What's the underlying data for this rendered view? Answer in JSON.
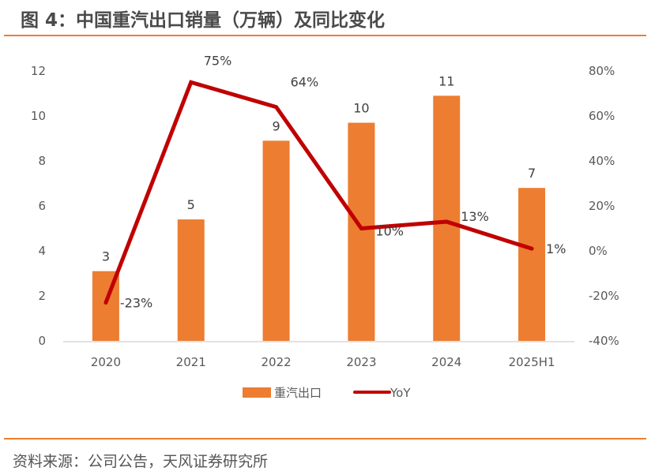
{
  "header": {
    "title": "图 4：中国重汽出口销量（万辆）及同比变化"
  },
  "footer": {
    "source": "资料来源：公司公告，天风证券研究所"
  },
  "colors": {
    "bar": "#ed7d31",
    "line": "#c00000",
    "rule": "#ed7d31",
    "axis": "#d9d9d9"
  },
  "chart_data": {
    "type": "bar+line",
    "title": "中国重汽出口销量（万辆）及同比变化",
    "categories": [
      "2020",
      "2021",
      "2022",
      "2023",
      "2024",
      "2025H1"
    ],
    "series": [
      {
        "name": "重汽出口",
        "type": "bar",
        "axis": "left",
        "values": [
          3.1,
          5.4,
          8.9,
          9.7,
          10.9,
          6.8
        ],
        "labels": [
          "3",
          "5",
          "9",
          "10",
          "11",
          "7"
        ]
      },
      {
        "name": "YoY",
        "type": "line",
        "axis": "right",
        "values": [
          -23,
          75,
          64,
          10,
          13,
          1
        ],
        "labels": [
          "-23%",
          "75%",
          "64%",
          "10%",
          "13%",
          "1%"
        ]
      }
    ],
    "left_axis": {
      "min": 0,
      "max": 12,
      "step": 2,
      "ticks": [
        "0",
        "2",
        "4",
        "6",
        "8",
        "10",
        "12"
      ]
    },
    "right_axis": {
      "min": -40,
      "max": 80,
      "step": 20,
      "ticks": [
        "-40%",
        "-20%",
        "0%",
        "20%",
        "40%",
        "60%",
        "80%"
      ]
    },
    "legend": {
      "position": "bottom",
      "items": [
        "重汽出口",
        "YoY"
      ]
    },
    "grid": false
  }
}
